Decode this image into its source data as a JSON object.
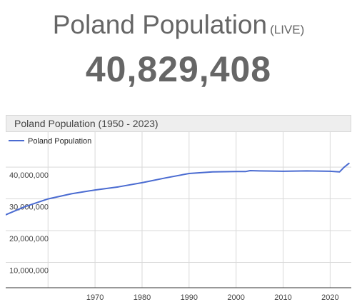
{
  "header": {
    "title": "Poland Population",
    "live_label": "(LIVE)",
    "counter": "40,829,408"
  },
  "chart_panel": {
    "title": "Poland Population (1950 - 2023)"
  },
  "colors": {
    "line": "#4a6bd1",
    "text": "#666666",
    "grid": "#d9d9d9"
  },
  "chart_data": {
    "type": "line",
    "title": "Poland Population (1950 - 2023)",
    "xlabel": "",
    "ylabel": "",
    "legend": "top-left",
    "grid": true,
    "xlim": [
      1951,
      2024.5
    ],
    "ylim": [
      2000000,
      47000000
    ],
    "x_ticks": [
      1970,
      1980,
      1990,
      2000,
      2010,
      2020
    ],
    "y_ticks": [
      {
        "value": 10000000,
        "label": "10,000,000"
      },
      {
        "value": 20000000,
        "label": "20,000,000"
      },
      {
        "value": 30000000,
        "label": "30,000,000"
      },
      {
        "value": 40000000,
        "label": "40,000,000"
      }
    ],
    "series": [
      {
        "name": "Poland Population",
        "x": [
          1951,
          1955,
          1960,
          1965,
          1970,
          1975,
          1980,
          1985,
          1990,
          1995,
          2000,
          2002,
          2003,
          2005,
          2010,
          2015,
          2020,
          2022,
          2023,
          2024
        ],
        "values": [
          25000000,
          27500000,
          30000000,
          31600000,
          32800000,
          33800000,
          35100000,
          36600000,
          38000000,
          38500000,
          38600000,
          38600000,
          38900000,
          38800000,
          38700000,
          38800000,
          38700000,
          38500000,
          40000000,
          41200000
        ]
      }
    ]
  }
}
